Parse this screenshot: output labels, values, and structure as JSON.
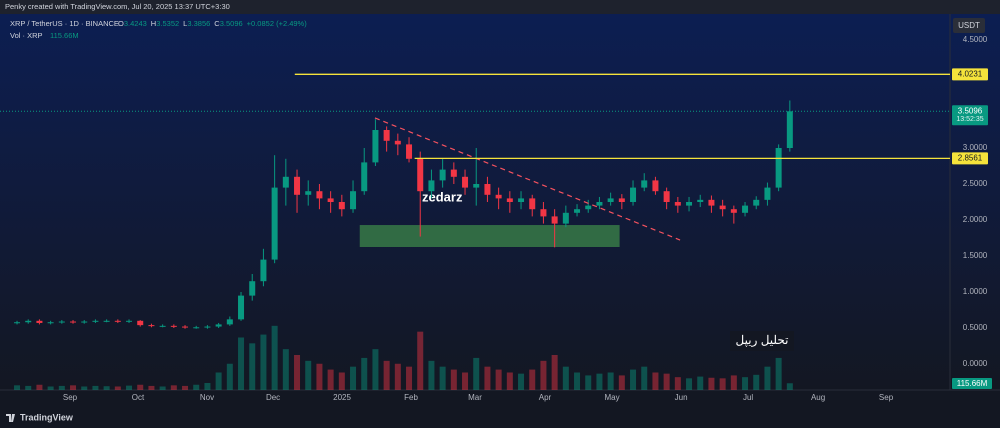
{
  "chart_data": {
    "type": "candlestick",
    "header": "Penky created with TradingView.com, Jul 20, 2025 13:37 UTC+3:30",
    "symbol": "XRP / TetherUS · 1D · BINANCE",
    "ohlc_legend": [
      [
        "O",
        3.4243
      ],
      [
        "H",
        3.5352
      ],
      [
        "L",
        3.3856
      ],
      [
        "C",
        3.5096
      ]
    ],
    "change": "+0.0852 (+2.49%)",
    "volume_legend": "Vol · XRP",
    "volume_label": "115.66M",
    "currency": "USDT",
    "countdown": "13:52:35",
    "brand": "TradingView",
    "annotations": [
      "zedarz",
      "تحلیل ریپل"
    ],
    "up_color": "#089981",
    "down_color": "#f23645",
    "level_color": "#f5e33b",
    "ylim": [
      -0.361,
      4.861
    ],
    "yticks": [
      {
        "value": 4.5,
        "label": "4.5000"
      },
      {
        "value": 3.0,
        "label": "3.0000"
      },
      {
        "value": 2.5,
        "label": "2.5000"
      },
      {
        "value": 2.0,
        "label": "2.0000"
      },
      {
        "value": 1.5,
        "label": "1.5000"
      },
      {
        "value": 1.0,
        "label": "1.0000"
      },
      {
        "value": 0.5,
        "label": "0.5000"
      },
      {
        "value": 0.0,
        "label": "0.0000"
      }
    ],
    "xlim": [
      -1.52,
      83.3
    ],
    "xticks": [
      {
        "value": 4.73,
        "label": "Sep"
      },
      {
        "value": 10.8,
        "label": "Oct"
      },
      {
        "value": 16.96,
        "label": "Nov"
      },
      {
        "value": 22.86,
        "label": "Dec"
      },
      {
        "value": 29.02,
        "label": "2025"
      },
      {
        "value": 35.18,
        "label": "Feb"
      },
      {
        "value": 40.89,
        "label": "Mar"
      },
      {
        "value": 47.14,
        "label": "Apr"
      },
      {
        "value": 53.13,
        "label": "May"
      },
      {
        "value": 59.29,
        "label": "Jun"
      },
      {
        "value": 65.27,
        "label": "Jul"
      },
      {
        "value": 71.52,
        "label": "Aug"
      },
      {
        "value": 77.59,
        "label": "Sep"
      }
    ],
    "grid": false,
    "open": [
      0.57,
      0.58,
      0.6,
      0.57,
      0.58,
      0.59,
      0.58,
      0.59,
      0.6,
      0.6,
      0.59,
      0.6,
      0.54,
      0.53,
      0.53,
      0.52,
      0.51,
      0.51,
      0.52,
      0.55,
      0.62,
      0.95,
      1.15,
      1.45,
      2.45,
      2.6,
      2.35,
      2.4,
      2.3,
      2.25,
      2.15,
      2.4,
      2.8,
      3.25,
      3.1,
      3.05,
      2.85,
      2.4,
      2.55,
      2.7,
      2.6,
      2.45,
      2.5,
      2.35,
      2.3,
      2.25,
      2.3,
      2.15,
      2.05,
      1.95,
      2.1,
      2.15,
      2.2,
      2.25,
      2.3,
      2.25,
      2.45,
      2.55,
      2.4,
      2.25,
      2.2,
      2.25,
      2.28,
      2.2,
      2.15,
      2.1,
      2.2,
      2.28,
      2.45,
      3.0
    ],
    "high": [
      0.6,
      0.62,
      0.62,
      0.6,
      0.61,
      0.61,
      0.61,
      0.62,
      0.62,
      0.62,
      0.62,
      0.61,
      0.56,
      0.55,
      0.55,
      0.54,
      0.53,
      0.54,
      0.57,
      0.66,
      1.0,
      1.25,
      1.6,
      2.9,
      2.85,
      2.7,
      2.55,
      2.5,
      2.4,
      2.35,
      2.55,
      3.0,
      3.4,
      3.3,
      3.2,
      3.15,
      2.95,
      2.7,
      2.85,
      2.8,
      2.7,
      3.0,
      2.6,
      2.45,
      2.4,
      2.4,
      2.35,
      2.25,
      2.15,
      2.2,
      2.22,
      2.28,
      2.32,
      2.38,
      2.36,
      2.55,
      2.65,
      2.6,
      2.45,
      2.32,
      2.32,
      2.35,
      2.34,
      2.28,
      2.2,
      2.25,
      2.33,
      2.52,
      3.05,
      3.66
    ],
    "low": [
      0.55,
      0.56,
      0.55,
      0.55,
      0.56,
      0.56,
      0.56,
      0.57,
      0.58,
      0.57,
      0.57,
      0.52,
      0.51,
      0.51,
      0.5,
      0.49,
      0.49,
      0.49,
      0.5,
      0.53,
      0.6,
      0.88,
      1.08,
      1.4,
      2.2,
      2.1,
      2.2,
      2.15,
      2.1,
      2.05,
      2.1,
      2.35,
      2.75,
      2.95,
      2.9,
      2.8,
      1.77,
      2.3,
      2.45,
      2.5,
      2.35,
      2.2,
      2.25,
      2.15,
      2.1,
      2.15,
      2.05,
      1.95,
      1.62,
      1.9,
      2.05,
      2.1,
      2.15,
      2.2,
      2.15,
      2.2,
      2.4,
      2.35,
      2.15,
      2.1,
      2.12,
      2.18,
      2.1,
      2.05,
      1.95,
      2.05,
      2.15,
      2.2,
      2.4,
      2.95
    ],
    "close": [
      0.58,
      0.6,
      0.57,
      0.58,
      0.59,
      0.58,
      0.59,
      0.6,
      0.6,
      0.59,
      0.6,
      0.54,
      0.53,
      0.53,
      0.52,
      0.51,
      0.51,
      0.52,
      0.55,
      0.62,
      0.95,
      1.15,
      1.45,
      2.45,
      2.6,
      2.35,
      2.4,
      2.3,
      2.25,
      2.15,
      2.4,
      2.8,
      3.25,
      3.1,
      3.05,
      2.85,
      2.4,
      2.55,
      2.7,
      2.6,
      2.45,
      2.5,
      2.35,
      2.3,
      2.25,
      2.3,
      2.15,
      2.05,
      1.95,
      2.1,
      2.15,
      2.2,
      2.25,
      2.3,
      2.25,
      2.45,
      2.55,
      2.4,
      2.25,
      2.2,
      2.25,
      2.28,
      2.2,
      2.15,
      2.1,
      2.2,
      2.28,
      2.45,
      3.0,
      3.5096
    ],
    "volume": [
      80,
      70,
      90,
      60,
      70,
      80,
      60,
      70,
      65,
      60,
      75,
      90,
      70,
      60,
      80,
      70,
      90,
      120,
      300,
      450,
      900,
      800,
      950,
      1100,
      700,
      600,
      500,
      450,
      350,
      300,
      400,
      550,
      700,
      500,
      450,
      400,
      1000,
      500,
      400,
      350,
      300,
      550,
      400,
      350,
      300,
      280,
      350,
      500,
      600,
      400,
      300,
      250,
      280,
      300,
      250,
      350,
      400,
      300,
      280,
      220,
      200,
      230,
      210,
      200,
      250,
      220,
      260,
      400,
      550,
      115.66
    ],
    "volume_ylim": [
      0,
      1200
    ],
    "levels": [
      {
        "value": 4.0231,
        "start": 24.8
      },
      {
        "value": 2.8561,
        "start": 35.5
      }
    ],
    "trendline": {
      "start": [
        31.96,
        3.417
      ],
      "end": [
        59.2,
        1.722
      ]
    },
    "zone": {
      "x": [
        30.6,
        53.8
      ],
      "y": [
        1.625,
        1.93
      ]
    }
  }
}
